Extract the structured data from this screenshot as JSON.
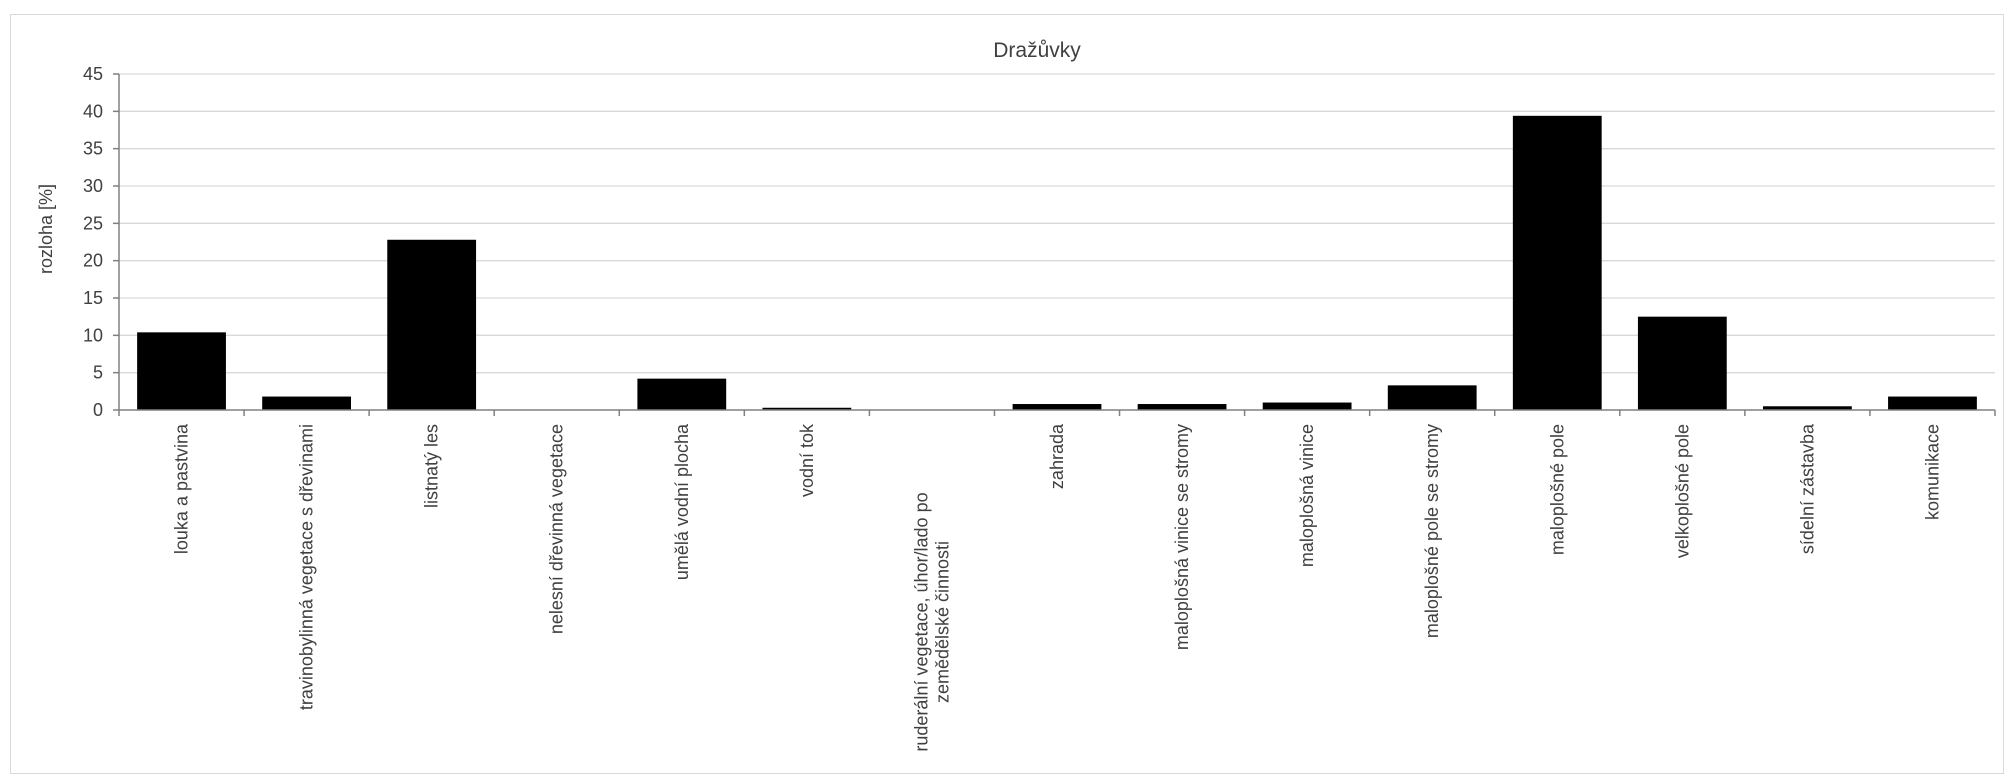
{
  "chart_data": {
    "type": "bar",
    "title": "Dražůvky",
    "xlabel": "",
    "ylabel": "rozloha [%]",
    "ylim": [
      0,
      45
    ],
    "yticks": [
      0,
      5,
      10,
      15,
      20,
      25,
      30,
      35,
      40,
      45
    ],
    "grid": true,
    "legend": "none",
    "categories": [
      "louka a pastvina",
      "travinobylinná vegetace s dřevinami",
      "listnatý les",
      "nelesní dřevinná vegetace",
      "umělá vodní plocha",
      "vodní tok",
      [
        "ruderální vegetace, úhor/lado po",
        "zemědělské činnosti"
      ],
      "zahrada",
      "maloplošná vinice se stromy",
      "maloplošná vinice",
      "maloplošné pole se stromy",
      "maloplošné pole",
      "velkoplošné pole",
      "sídelní zástavba",
      "komunikace"
    ],
    "values": [
      10.4,
      1.8,
      22.8,
      0.0,
      4.2,
      0.3,
      0.0,
      0.8,
      0.8,
      1.0,
      3.3,
      39.4,
      12.5,
      0.5,
      1.8
    ],
    "colors": {
      "bar": "#000000",
      "grid": "#d9d9d9",
      "axis": "#808080",
      "text": "#404040"
    }
  }
}
